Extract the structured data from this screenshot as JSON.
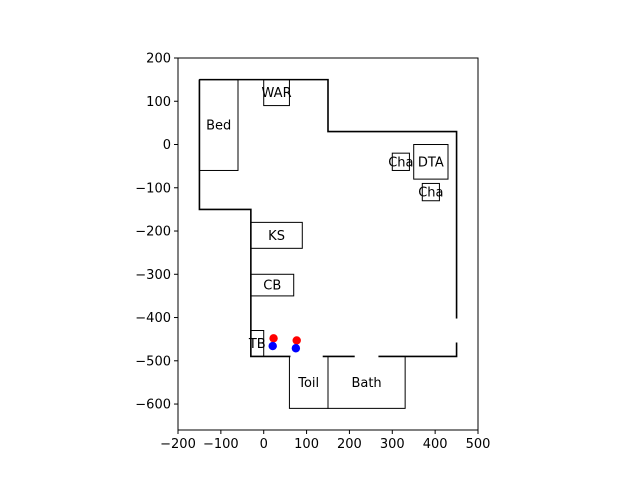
{
  "chart_data": {
    "type": "floor-plan-scatter",
    "title": "",
    "xlabel": "",
    "ylabel": "",
    "xlim": [
      -200,
      500
    ],
    "ylim": [
      -660,
      200
    ],
    "aspect": "equal",
    "grid": false,
    "legend": "none",
    "xticks": [
      -200,
      -100,
      0,
      100,
      200,
      300,
      400,
      500
    ],
    "xtick_labels": [
      "−200",
      "−100",
      "0",
      "100",
      "200",
      "300",
      "400",
      "500"
    ],
    "yticks": [
      200,
      100,
      0,
      -100,
      -200,
      -300,
      -400,
      -500,
      -600
    ],
    "ytick_labels": [
      "200",
      "100",
      "0",
      "−100",
      "−200",
      "−300",
      "−400",
      "−500",
      "−600"
    ],
    "walls": [
      [
        -150,
        150
      ],
      [
        150,
        150
      ],
      [
        150,
        30
      ],
      [
        450,
        30
      ],
      [
        450,
        -490
      ],
      [
        -30,
        -490
      ],
      [
        -30,
        -150
      ],
      [
        -150,
        -150
      ],
      [
        -150,
        150
      ]
    ],
    "openings": [
      {
        "x": [
          60,
          140
        ],
        "y": -490
      },
      {
        "x": [
          210,
          270
        ],
        "y": -490
      },
      {
        "x": [
          450,
          450
        ],
        "y": [
          -400,
          -460
        ]
      }
    ],
    "furniture": [
      {
        "label": "Bed",
        "x0": -150,
        "x1": -60,
        "y0": -60,
        "y1": 150
      },
      {
        "label": "WAR",
        "x0": 0,
        "x1": 60,
        "y0": 90,
        "y1": 150
      },
      {
        "label": "DTA",
        "x0": 350,
        "x1": 430,
        "y0": -80,
        "y1": 0
      },
      {
        "label": "Cha",
        "x0": 300,
        "x1": 340,
        "y0": -60,
        "y1": -20
      },
      {
        "label": "Cha",
        "x0": 370,
        "x1": 410,
        "y0": -130,
        "y1": -90
      },
      {
        "label": "KS",
        "x0": -30,
        "x1": 90,
        "y0": -240,
        "y1": -180
      },
      {
        "label": "CB",
        "x0": -30,
        "x1": 70,
        "y0": -350,
        "y1": -300
      },
      {
        "label": "TB",
        "x0": -30,
        "x1": 0,
        "y0": -490,
        "y1": -430
      },
      {
        "label": "Toil",
        "x0": 60,
        "x1": 150,
        "y0": -610,
        "y1": -490
      },
      {
        "label": "Bath",
        "x0": 150,
        "x1": 330,
        "y0": -610,
        "y1": -490
      }
    ],
    "series": [
      {
        "color": "#ff0000",
        "points": [
          [
            23,
            -448
          ],
          [
            77,
            -453
          ]
        ]
      },
      {
        "color": "#0000ff",
        "points": [
          [
            21,
            -466
          ],
          [
            75,
            -471
          ]
        ]
      }
    ]
  }
}
